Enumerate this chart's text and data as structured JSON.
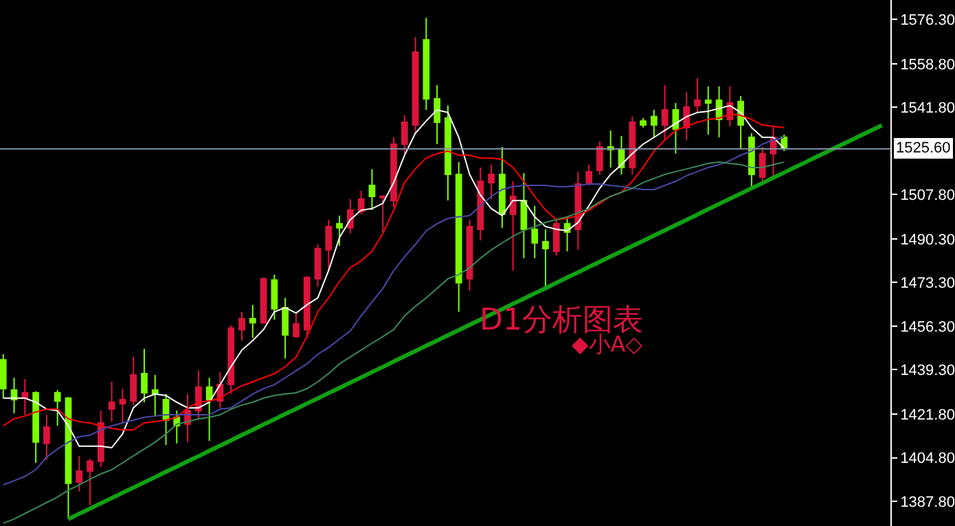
{
  "chart_data": {
    "type": "candlestick",
    "categories": [
      null,
      null,
      null,
      null,
      null,
      null,
      null,
      null,
      null,
      null,
      null,
      null,
      null,
      null,
      null,
      null,
      null,
      null,
      null,
      null,
      null,
      null,
      null,
      null,
      null,
      null,
      null,
      null,
      null,
      null,
      null,
      null,
      null,
      null,
      null,
      null,
      null,
      null,
      null,
      null,
      null,
      null,
      null,
      null,
      null,
      null,
      null,
      null,
      null,
      null,
      null,
      null,
      null,
      null,
      null,
      null,
      null,
      null,
      null,
      null,
      null,
      null,
      null,
      null,
      null,
      null,
      null,
      null,
      null,
      null,
      null,
      null,
      null,
      null,
      null,
      null,
      null,
      null,
      null,
      null,
      null,
      null
    ],
    "ohlc": [
      [
        1443.1,
        1445.3,
        1428.1,
        1431.8
      ],
      [
        1431.3,
        1436.1,
        1422.2,
        1427.5
      ],
      [
        1428.1,
        1435.6,
        1421.6,
        1430.2
      ],
      [
        1430.2,
        1430.8,
        1402.8,
        1410.9
      ],
      [
        1410.4,
        1421.6,
        1403.9,
        1416.8
      ],
      [
        1430.2,
        1431.3,
        1417.3,
        1427.0
      ],
      [
        1428.1,
        1428.6,
        1380.8,
        1394.8
      ],
      [
        1395.3,
        1405.5,
        1391.6,
        1399.6
      ],
      [
        1399.6,
        1404.4,
        1386.2,
        1403.4
      ],
      [
        1403.4,
        1423.2,
        1401.2,
        1418.4
      ],
      [
        1423.8,
        1434.5,
        1418.9,
        1426.5
      ],
      [
        1425.9,
        1431.8,
        1418.4,
        1427.5
      ],
      [
        1427.0,
        1444.2,
        1425.4,
        1437.2
      ],
      [
        1437.7,
        1447.4,
        1426.5,
        1430.2
      ],
      [
        1431.3,
        1437.2,
        1421.1,
        1429.7
      ],
      [
        1427.5,
        1429.7,
        1409.8,
        1419.5
      ],
      [
        1420.6,
        1423.2,
        1410.4,
        1417.3
      ],
      [
        1417.9,
        1429.7,
        1410.9,
        1423.2
      ],
      [
        1423.2,
        1438.8,
        1420.0,
        1432.4
      ],
      [
        1432.4,
        1436.1,
        1411.4,
        1427.5
      ],
      [
        1427.0,
        1438.3,
        1424.3,
        1433.4
      ],
      [
        1433.4,
        1456.5,
        1429.7,
        1455.5
      ],
      [
        1454.9,
        1461.9,
        1450.6,
        1459.2
      ],
      [
        1459.2,
        1464.6,
        1451.7,
        1457.6
      ],
      [
        1457.6,
        1475.3,
        1457.1,
        1474.8
      ],
      [
        1474.3,
        1476.4,
        1458.7,
        1463.0
      ],
      [
        1463.5,
        1467.3,
        1443.6,
        1452.8
      ],
      [
        1452.2,
        1461.4,
        1451.7,
        1457.1
      ],
      [
        1454.9,
        1475.9,
        1451.7,
        1475.3
      ],
      [
        1474.8,
        1488.2,
        1471.6,
        1486.6
      ],
      [
        1486.1,
        1497.9,
        1477.5,
        1495.2
      ],
      [
        1496.3,
        1499.5,
        1487.7,
        1494.7
      ],
      [
        1494.7,
        1505.9,
        1492.5,
        1501.6
      ],
      [
        1501.1,
        1509.2,
        1500.0,
        1505.9
      ],
      [
        1511.3,
        1517.7,
        1501.6,
        1507.0
      ],
      [
        1506.5,
        1507.5,
        1493.0,
        1507.0
      ],
      [
        1505.4,
        1530.1,
        1502.7,
        1527.4
      ],
      [
        1527.4,
        1538.7,
        1523.7,
        1536.0
      ],
      [
        1534.9,
        1569.3,
        1531.7,
        1563.4
      ],
      [
        1568.2,
        1576.8,
        1540.8,
        1545.1
      ],
      [
        1545.1,
        1550.5,
        1527.4,
        1536.0
      ],
      [
        1537.6,
        1542.5,
        1505.4,
        1515.6
      ],
      [
        1515.6,
        1520.4,
        1461.9,
        1473.2
      ],
      [
        1474.8,
        1497.9,
        1470.0,
        1495.2
      ],
      [
        1494.1,
        1518.3,
        1489.8,
        1512.9
      ],
      [
        1512.4,
        1519.4,
        1505.9,
        1515.6
      ],
      [
        1515.6,
        1526.3,
        1494.7,
        1500.0
      ],
      [
        1500.0,
        1512.9,
        1478.0,
        1507.0
      ],
      [
        1505.4,
        1516.1,
        1482.8,
        1494.1
      ],
      [
        1494.1,
        1503.3,
        1482.8,
        1488.8
      ],
      [
        1489.3,
        1494.1,
        1471.6,
        1486.6
      ],
      [
        1485.5,
        1497.9,
        1483.9,
        1496.3
      ],
      [
        1496.3,
        1499.0,
        1485.5,
        1493.0
      ],
      [
        1494.1,
        1516.7,
        1486.1,
        1511.8
      ],
      [
        1512.4,
        1519.4,
        1511.3,
        1516.7
      ],
      [
        1517.2,
        1528.5,
        1515.6,
        1526.3
      ],
      [
        1526.3,
        1532.8,
        1518.3,
        1525.3
      ],
      [
        1525.3,
        1530.6,
        1515.6,
        1518.3
      ],
      [
        1518.3,
        1538.2,
        1515.6,
        1536.0
      ],
      [
        1536.5,
        1537.6,
        1533.9,
        1534.9
      ],
      [
        1538.2,
        1540.8,
        1530.1,
        1534.9
      ],
      [
        1534.9,
        1550.5,
        1529.0,
        1540.8
      ],
      [
        1540.8,
        1543.5,
        1523.7,
        1533.3
      ],
      [
        1533.9,
        1547.8,
        1529.0,
        1541.9
      ],
      [
        1542.5,
        1553.2,
        1539.8,
        1544.6
      ],
      [
        1544.6,
        1550.0,
        1531.2,
        1543.5
      ],
      [
        1544.6,
        1550.0,
        1530.1,
        1537.1
      ],
      [
        1537.1,
        1550.0,
        1534.4,
        1543.5
      ],
      [
        1544.1,
        1546.2,
        1525.8,
        1534.9
      ],
      [
        1530.1,
        1531.7,
        1510.2,
        1515.6
      ],
      [
        1514.5,
        1526.3,
        1511.3,
        1523.7
      ],
      [
        1523.7,
        1534.4,
        1514.0,
        1530.1
      ],
      [
        1530.1,
        1531.2,
        1524.7,
        1525.8
      ],
      null,
      null,
      null,
      null,
      null,
      null,
      null,
      null,
      null
    ],
    "colors": [
      "#7cfc00",
      "#7cfc00",
      "#dc143c",
      "#7cfc00",
      "#dc143c",
      "#7cfc00",
      "#7cfc00",
      "#dc143c",
      "#dc143c",
      "#dc143c",
      "#dc143c",
      "#dc143c",
      "#dc143c",
      "#7cfc00",
      "#7cfc00",
      "#7cfc00",
      "#7cfc00",
      "#dc143c",
      "#dc143c",
      "#7cfc00",
      "#dc143c",
      "#dc143c",
      "#dc143c",
      "#7cfc00",
      "#dc143c",
      "#7cfc00",
      "#7cfc00",
      "#dc143c",
      "#dc143c",
      "#dc143c",
      "#dc143c",
      "#7cfc00",
      "#dc143c",
      "#dc143c",
      "#7cfc00",
      "#dc143c",
      "#dc143c",
      "#dc143c",
      "#dc143c",
      "#7cfc00",
      "#7cfc00",
      "#7cfc00",
      "#7cfc00",
      "#dc143c",
      "#dc143c",
      "#dc143c",
      "#7cfc00",
      "#dc143c",
      "#7cfc00",
      "#7cfc00",
      "#7cfc00",
      "#dc143c",
      "#7cfc00",
      "#dc143c",
      "#dc143c",
      "#dc143c",
      "#7cfc00",
      "#7cfc00",
      "#dc143c",
      "#7cfc00",
      "#7cfc00",
      "#dc143c",
      "#7cfc00",
      "#dc143c",
      "#dc143c",
      "#7cfc00",
      "#7cfc00",
      "#dc143c",
      "#7cfc00",
      "#7cfc00",
      "#dc143c",
      "#dc143c",
      "#7cfc00",
      null,
      null,
      null,
      null,
      null,
      null,
      null,
      null,
      null
    ],
    "series": [
      {
        "type": "line",
        "color": "#ffffff",
        "values": [
          1428.1,
          1428.1,
          1428.1,
          1426.5,
          1423.8,
          1423.2,
          1417.3,
          1409.3,
          1409.3,
          1409.3,
          1408.7,
          1414.1,
          1424.3,
          1428.1,
          1429.7,
          1429.1,
          1426.5,
          1424.3,
          1424.3,
          1426.5,
          1433.4,
          1440.4,
          1446.9,
          1450.6,
          1454.9,
          1461.9,
          1463.5,
          1461.4,
          1464.6,
          1467.3,
          1478.0,
          1490.9,
          1497.9,
          1501.6,
          1502.2,
          1504.3,
          1512.4,
          1523.1,
          1531.7,
          1536.5,
          1540.8,
          1539.8,
          1530.1,
          1515.6,
          1507.5,
          1502.2,
          1499.5,
          1505.4,
          1505.4,
          1499.0,
          1495.2,
          1494.1,
          1493.6,
          1496.8,
          1503.3,
          1510.2,
          1515.6,
          1519.4,
          1523.7,
          1527.4,
          1530.1,
          1532.8,
          1535.5,
          1538.2,
          1539.8,
          1540.3,
          1541.4,
          1542.5,
          1539.8,
          1533.9,
          1530.1,
          1530.1,
          1525.8,
          null,
          null,
          null,
          null,
          null,
          null,
          null,
          null,
          null
        ]
      },
      {
        "type": "line",
        "color": "#ff0000",
        "values": [
          1417.3,
          1420.0,
          1421.1,
          1422.7,
          1423.8,
          1423.8,
          1420.0,
          1418.9,
          1418.4,
          1417.3,
          1416.3,
          1415.7,
          1415.7,
          1418.4,
          1418.9,
          1419.5,
          1420.6,
          1424.3,
          1426.5,
          1427.0,
          1428.1,
          1430.8,
          1432.9,
          1434.5,
          1436.1,
          1437.7,
          1440.4,
          1444.2,
          1452.2,
          1461.9,
          1467.3,
          1473.7,
          1479.1,
          1481.8,
          1485.5,
          1492.5,
          1501.6,
          1512.4,
          1517.7,
          1522.0,
          1523.7,
          1524.7,
          1523.1,
          1523.1,
          1522.0,
          1522.0,
          1521.5,
          1518.3,
          1512.9,
          1507.0,
          1501.6,
          1497.9,
          1498.4,
          1499.5,
          1501.6,
          1504.3,
          1507.0,
          1508.6,
          1512.9,
          1518.3,
          1524.7,
          1529.0,
          1532.8,
          1534.4,
          1536.0,
          1537.1,
          1537.6,
          1539.2,
          1538.7,
          1537.1,
          1534.9,
          1534.4,
          1533.9,
          null,
          null,
          null,
          null,
          null,
          null,
          null,
          null,
          null
        ]
      },
      {
        "type": "line",
        "color": "#4a48a8",
        "values": [
          1394.2,
          1395.8,
          1397.5,
          1400.1,
          1405.0,
          1408.2,
          1410.9,
          1413.0,
          1413.6,
          1415.7,
          1417.3,
          1418.4,
          1419.5,
          1420.6,
          1421.1,
          1421.6,
          1421.6,
          1421.6,
          1421.6,
          1421.6,
          1423.8,
          1424.3,
          1427.0,
          1429.7,
          1431.8,
          1433.4,
          1436.1,
          1438.8,
          1441.5,
          1445.3,
          1447.9,
          1451.2,
          1454.4,
          1460.3,
          1465.7,
          1471.0,
          1478.0,
          1483.4,
          1488.2,
          1493.6,
          1496.3,
          1498.4,
          1499.0,
          1499.5,
          1503.3,
          1507.0,
          1509.7,
          1510.8,
          1511.3,
          1511.3,
          1511.3,
          1510.8,
          1510.8,
          1511.3,
          1511.8,
          1511.8,
          1511.3,
          1510.8,
          1510.2,
          1509.7,
          1509.7,
          1511.3,
          1512.9,
          1515.1,
          1516.7,
          1518.3,
          1519.4,
          1521.0,
          1523.1,
          1524.7,
          1527.4,
          1529.0,
          1530.1,
          null,
          null,
          null,
          null,
          null,
          null,
          null,
          null,
          null
        ]
      },
      {
        "type": "line",
        "color": "#3a8a5a",
        "values": [
          1379.2,
          1380.8,
          1383.0,
          1385.1,
          1387.3,
          1389.4,
          1392.1,
          1394.2,
          1396.4,
          1398.5,
          1400.1,
          1402.8,
          1405.5,
          1408.2,
          1410.9,
          1414.1,
          1417.9,
          1418.9,
          1420.0,
          1420.6,
          1421.6,
          1423.8,
          1425.4,
          1426.5,
          1428.1,
          1429.1,
          1429.7,
          1430.2,
          1431.8,
          1434.5,
          1437.7,
          1441.5,
          1444.2,
          1446.9,
          1449.6,
          1452.2,
          1454.9,
          1460.3,
          1464.0,
          1467.3,
          1471.0,
          1474.8,
          1476.4,
          1479.1,
          1482.8,
          1486.1,
          1488.8,
          1491.4,
          1493.6,
          1495.2,
          1496.8,
          1497.9,
          1499.0,
          1500.6,
          1502.2,
          1504.9,
          1507.0,
          1508.6,
          1510.2,
          1512.4,
          1514.0,
          1515.6,
          1516.7,
          1517.7,
          1518.8,
          1519.9,
          1520.4,
          1519.9,
          1519.4,
          1518.3,
          1518.3,
          1519.4,
          1520.4,
          null,
          null,
          null,
          null,
          null,
          null,
          null,
          null,
          null
        ]
      },
      {
        "type": "line",
        "color": "#12a012",
        "values": [
          null,
          null,
          null,
          null,
          null,
          null,
          1380.8,
          1382.9,
          1384.9,
          1387.0,
          1389.0,
          1391.1,
          1393.1,
          1395.2,
          1397.2,
          1399.3,
          1401.3,
          1403.4,
          1405.4,
          1407.5,
          1409.5,
          1411.6,
          1413.7,
          1415.7,
          1417.8,
          1419.8,
          1421.9,
          1423.9,
          1426.0,
          1428.0,
          1430.1,
          1432.1,
          1434.2,
          1436.2,
          1438.3,
          1440.3,
          1442.4,
          1444.5,
          1446.5,
          1448.6,
          1450.6,
          1452.7,
          1454.7,
          1456.8,
          1458.8,
          1460.9,
          1462.9,
          1465.0,
          1467.0,
          1469.1,
          1471.1,
          1473.2,
          1475.3,
          1477.3,
          1479.4,
          1481.4,
          1483.5,
          1485.5,
          1487.6,
          1489.6,
          1491.7,
          1493.7,
          1495.8,
          1497.8,
          1499.9,
          1502.0,
          1504.0,
          1506.1,
          1508.1,
          1510.2,
          1512.2,
          1514.3,
          1516.3,
          1518.4,
          1520.4,
          1522.5,
          1524.5,
          1526.6,
          1528.6,
          1530.7,
          1532.7,
          1534.8
        ]
      }
    ],
    "ylim": [
      1378.1,
      1583.8
    ],
    "yticks": [
      {
        "value": 1576.3,
        "label": "1576.30"
      },
      {
        "value": 1558.8,
        "label": "1558.80"
      },
      {
        "value": 1541.8,
        "label": "1541.80"
      },
      {
        "value": 1507.8,
        "label": "1507.80"
      },
      {
        "value": 1490.3,
        "label": "1490.30"
      },
      {
        "value": 1473.3,
        "label": "1473.30"
      },
      {
        "value": 1456.3,
        "label": "1456.30"
      },
      {
        "value": 1439.3,
        "label": "1439.30"
      },
      {
        "value": 1421.8,
        "label": "1421.80"
      },
      {
        "value": 1404.8,
        "label": "1404.80"
      },
      {
        "value": 1387.8,
        "label": "1387.80"
      }
    ],
    "ref_lines": [
      {
        "axis": "y",
        "value": 1525.6,
        "label": "1525.60",
        "color": "#8494a8"
      }
    ],
    "annotations": [
      "D1分析图表",
      "◆小A◇"
    ],
    "tick_labels": "y"
  }
}
